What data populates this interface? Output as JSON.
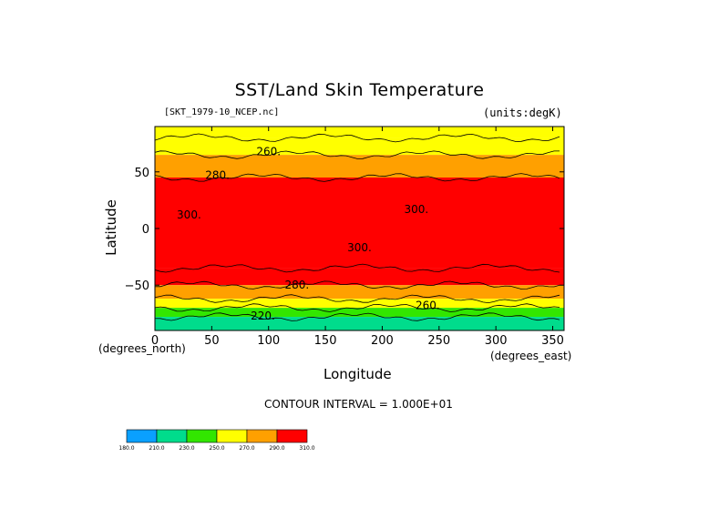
{
  "chart_data": {
    "type": "heatmap",
    "title": "SST/Land Skin Temperature",
    "subtitle_left": "[SKT_1979-10_NCEP.nc]",
    "subtitle_right": "(units:degK)",
    "xlabel": "Longitude",
    "ylabel": "Latitude",
    "x_unit_left": "(degrees_north)",
    "x_unit_right": "(degrees_east)",
    "xlim": [
      0,
      360
    ],
    "ylim": [
      -90,
      90
    ],
    "xticks": [
      "0",
      "50",
      "100",
      "150",
      "200",
      "250",
      "300",
      "350"
    ],
    "xtick_values": [
      0,
      50,
      100,
      150,
      200,
      250,
      300,
      350
    ],
    "yticks": [
      "50",
      "0",
      "−50"
    ],
    "ytick_values": [
      50,
      0,
      -50
    ],
    "contour_interval_text": "CONTOUR INTERVAL = 1.000E+01",
    "contour_labels": [
      {
        "text": "260.",
        "lon": 100,
        "lat": 68
      },
      {
        "text": "280.",
        "lon": 55,
        "lat": 47
      },
      {
        "text": "300.",
        "lon": 30,
        "lat": 12
      },
      {
        "text": "300.",
        "lon": 230,
        "lat": 17
      },
      {
        "text": "300.",
        "lon": 180,
        "lat": -17
      },
      {
        "text": "280.",
        "lon": 125,
        "lat": -50
      },
      {
        "text": "260.",
        "lon": 240,
        "lat": -68
      },
      {
        "text": "220.",
        "lon": 95,
        "lat": -77
      }
    ],
    "zonal_bands": [
      {
        "lat_min": 80,
        "lat_max": 90,
        "value": 250
      },
      {
        "lat_min": 65,
        "lat_max": 80,
        "value": 265
      },
      {
        "lat_min": 45,
        "lat_max": 65,
        "value": 285
      },
      {
        "lat_min": -35,
        "lat_max": 45,
        "value": 305
      },
      {
        "lat_min": -50,
        "lat_max": -35,
        "value": 290
      },
      {
        "lat_min": -62,
        "lat_max": -50,
        "value": 280
      },
      {
        "lat_min": -70,
        "lat_max": -62,
        "value": 265
      },
      {
        "lat_min": -78,
        "lat_max": -70,
        "value": 235
      },
      {
        "lat_min": -90,
        "lat_max": -78,
        "value": 215
      }
    ],
    "colorbar": {
      "bins": [
        {
          "color": "#0aa0ff",
          "from": 180,
          "to": 210
        },
        {
          "color": "#00dc8c",
          "from": 210,
          "to": 230
        },
        {
          "color": "#32e600",
          "from": 230,
          "to": 250
        },
        {
          "color": "#ffff00",
          "from": 250,
          "to": 270
        },
        {
          "color": "#ffa000",
          "from": 270,
          "to": 290
        },
        {
          "color": "#ff0000",
          "from": 290,
          "to": 310
        }
      ],
      "labels": [
        "180.0",
        "210.0",
        "230.0",
        "250.0",
        "270.0",
        "290.0",
        "310.0"
      ]
    }
  }
}
